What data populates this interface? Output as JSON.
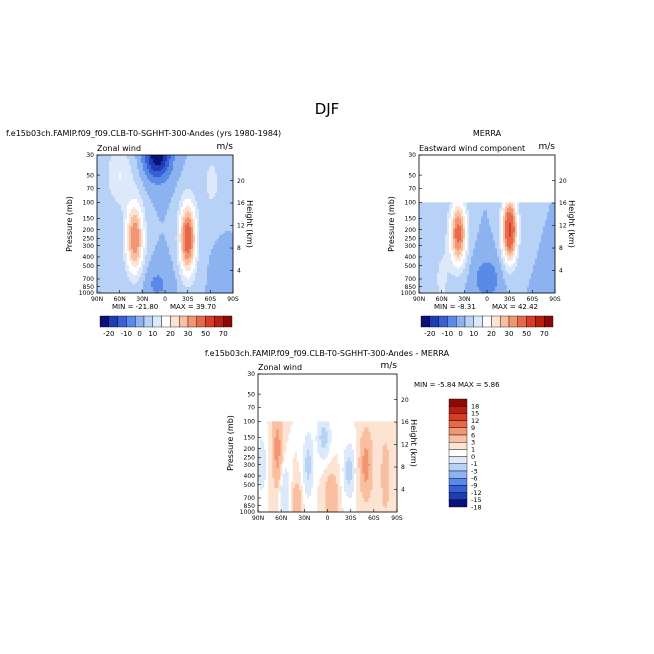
{
  "figure_title": "DJF",
  "panels": [
    {
      "id": "model",
      "title": "f.e15b03ch.FAMIP.f09_f09.CLB-T0-SGHHT-300-Andes (yrs 1980-1984)",
      "subtitle_left": "Zonal wind",
      "subtitle_right": "m/s",
      "min_label": "MIN = -21.80",
      "max_label": "MAX =  39.70",
      "colorbar_labels": [
        "-20",
        "-10",
        "0",
        "10",
        "20",
        "30",
        "50",
        "70"
      ]
    },
    {
      "id": "obs",
      "title": "MERRA",
      "subtitle_left": "Eastward wind component",
      "subtitle_right": "m/s",
      "min_label": "MIN =  -8.31",
      "max_label": "MAX =  42.42",
      "colorbar_labels": [
        "-20",
        "-10",
        "0",
        "10",
        "20",
        "30",
        "50",
        "70"
      ]
    },
    {
      "id": "diff",
      "title": "f.e15b03ch.FAMIP.f09_f09.CLB-T0-SGHHT-300-Andes - MERRA",
      "subtitle_left": "Zonal wind",
      "subtitle_right": "m/s",
      "minmax_label": "MIN =  -5.84   MAX =   5.86",
      "colorbar_labels": [
        "18",
        "15",
        "12",
        "9",
        "6",
        "3",
        "1",
        "0",
        "-1",
        "-3",
        "-6",
        "-9",
        "-12",
        "-15",
        "-18"
      ]
    }
  ],
  "axes": {
    "ylabel": "Pressure (mb)",
    "y2label": "Height (km)",
    "pressure_ticks": [
      "30",
      "50",
      "70",
      "100",
      "150",
      "200",
      "250",
      "300",
      "400",
      "500",
      "700",
      "850",
      "1000"
    ],
    "height_ticks": [
      "20",
      "16",
      "12",
      "8",
      "4"
    ],
    "lat_ticks": [
      "90N",
      "60N",
      "30N",
      "0",
      "30S",
      "60S",
      "90S"
    ]
  },
  "colors": {
    "full_field": [
      "#0c1078",
      "#1e3cb4",
      "#3760d6",
      "#5a8ae8",
      "#8cb2f0",
      "#b7d2f6",
      "#dce9fa",
      "#ffffff",
      "#fde3d2",
      "#f9bfa0",
      "#f19572",
      "#e8694a",
      "#d63c26",
      "#b81e12",
      "#8c0a06"
    ],
    "difference": [
      "#8c0a06",
      "#b81e12",
      "#d63c26",
      "#e8694a",
      "#f19572",
      "#f9bfa0",
      "#fde3d2",
      "#ffffff",
      "#dce9fa",
      "#b7d2f6",
      "#8cb2f0",
      "#5a8ae8",
      "#3760d6",
      "#1e3cb4",
      "#0c1078"
    ]
  },
  "chart_data": [
    {
      "type": "heatmap",
      "title": "f.e15b03ch.FAMIP.f09_f09.CLB-T0-SGHHT-300-Andes (yrs 1980-1984)",
      "xlabel": "",
      "ylabel": "Pressure (mb)",
      "xlim": [
        -90,
        90
      ],
      "ylim": [
        1000,
        30
      ],
      "y_scale": "log",
      "grid": false,
      "features": [
        {
          "lat": -30,
          "p": 250,
          "u": 35
        },
        {
          "lat": 40,
          "p": 250,
          "u": 30
        },
        {
          "lat": 5,
          "p": 30,
          "u": -20
        }
      ]
    },
    {
      "type": "heatmap",
      "title": "MERRA",
      "xlabel": "",
      "ylabel": "Pressure (mb)",
      "xlim": [
        -90,
        90
      ],
      "ylim": [
        1000,
        100
      ],
      "y_scale": "log",
      "grid": false,
      "features": [
        {
          "lat": -30,
          "p": 200,
          "u": 40
        },
        {
          "lat": 38,
          "p": 220,
          "u": 32
        }
      ]
    },
    {
      "type": "heatmap",
      "title": "f.e15b03ch.FAMIP.f09_f09.CLB-T0-SGHHT-300-Andes - MERRA",
      "xlabel": "",
      "ylabel": "Pressure (mb)",
      "xlim": [
        -90,
        90
      ],
      "ylim": [
        1000,
        100
      ],
      "y_scale": "log",
      "grid": false,
      "features": [
        {
          "lat": -28,
          "p": 350,
          "u": 4
        },
        {
          "lat": 5,
          "p": 150,
          "u": 4
        },
        {
          "lat": 25,
          "p": 300,
          "u": 4
        },
        {
          "lat": 65,
          "p": 200,
          "u": -4
        }
      ]
    }
  ]
}
